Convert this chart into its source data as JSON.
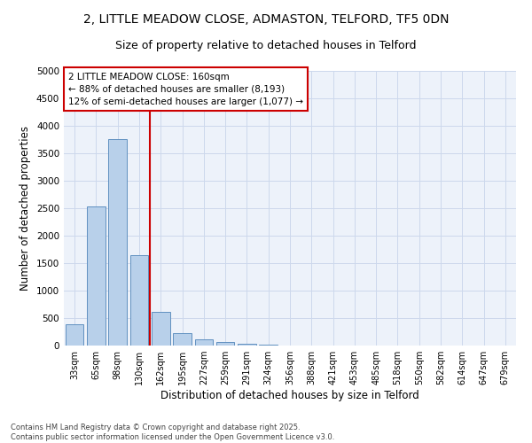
{
  "title_line1": "2, LITTLE MEADOW CLOSE, ADMASTON, TELFORD, TF5 0DN",
  "title_line2": "Size of property relative to detached houses in Telford",
  "xlabel": "Distribution of detached houses by size in Telford",
  "ylabel": "Number of detached properties",
  "categories": [
    "33sqm",
    "65sqm",
    "98sqm",
    "130sqm",
    "162sqm",
    "195sqm",
    "227sqm",
    "259sqm",
    "291sqm",
    "324sqm",
    "356sqm",
    "388sqm",
    "421sqm",
    "453sqm",
    "485sqm",
    "518sqm",
    "550sqm",
    "582sqm",
    "614sqm",
    "647sqm",
    "679sqm"
  ],
  "values": [
    380,
    2540,
    3760,
    1650,
    620,
    225,
    105,
    60,
    35,
    10,
    5,
    2,
    1,
    1,
    0,
    0,
    0,
    0,
    0,
    0,
    0
  ],
  "bar_color": "#b8d0ea",
  "bar_edge_color": "#6090c0",
  "vline_color": "#cc0000",
  "annotation_text": "2 LITTLE MEADOW CLOSE: 160sqm\n← 88% of detached houses are smaller (8,193)\n12% of semi-detached houses are larger (1,077) →",
  "annotation_box_color": "#cc0000",
  "ylim": [
    0,
    5000
  ],
  "yticks": [
    0,
    500,
    1000,
    1500,
    2000,
    2500,
    3000,
    3500,
    4000,
    4500,
    5000
  ],
  "grid_color": "#ccd8ec",
  "background_color": "#edf2fa",
  "footer_text": "Contains HM Land Registry data © Crown copyright and database right 2025.\nContains public sector information licensed under the Open Government Licence v3.0.",
  "title_fontsize": 10,
  "subtitle_fontsize": 9,
  "tick_fontsize": 7,
  "label_fontsize": 8.5,
  "annotation_fontsize": 7.5,
  "footer_fontsize": 6
}
